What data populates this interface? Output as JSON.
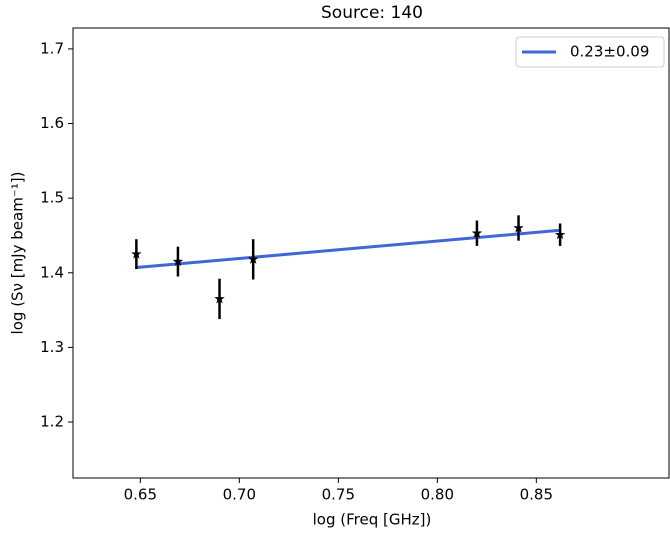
{
  "chart_data": {
    "type": "scatter",
    "title": "Source: 140",
    "xlabel": "log (Freq [GHz])",
    "ylabel": "log (Sν [mJy beam⁻¹])",
    "xlim": [
      0.616,
      0.917
    ],
    "ylim": [
      1.125,
      1.728
    ],
    "xticks": [
      0.65,
      {
        "value": 0.7,
        "label": "0.70"
      },
      0.75,
      {
        "value": 0.8,
        "label": "0.80"
      },
      0.85
    ],
    "yticks": [
      1.2,
      1.3,
      1.4,
      1.5,
      1.6,
      1.7
    ],
    "points": {
      "color": "#000000",
      "x": [
        0.648,
        0.669,
        0.69,
        0.707,
        0.82,
        0.841,
        0.862
      ],
      "y": [
        1.425,
        1.415,
        1.365,
        1.418,
        1.453,
        1.46,
        1.451
      ],
      "yerr": [
        0.02,
        0.02,
        0.027,
        0.027,
        0.017,
        0.017,
        0.015
      ]
    },
    "fit": {
      "name": "0.23±0.09",
      "color": "#3f68d6",
      "x": [
        0.648,
        0.862
      ],
      "y": [
        1.407,
        1.457
      ]
    },
    "legend": "upper right"
  }
}
